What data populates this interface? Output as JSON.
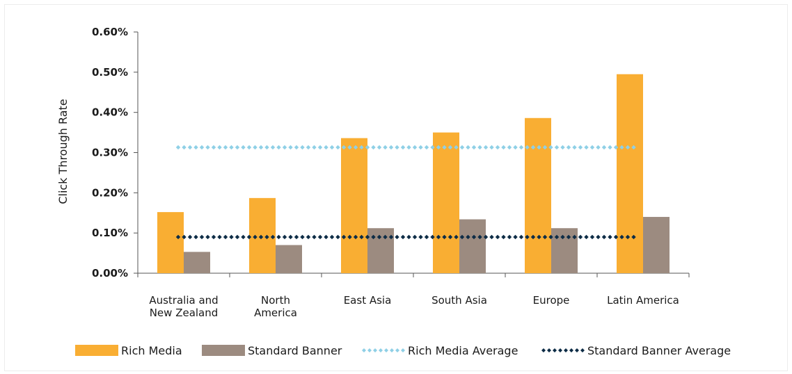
{
  "chart_data": {
    "type": "bar",
    "ylabel": "Click Through Rate",
    "xlabel": "",
    "ylim": [
      0,
      0.6
    ],
    "yticks": [
      "0.00%",
      "0.10%",
      "0.20%",
      "0.30%",
      "0.40%",
      "0.50%",
      "0.60%"
    ],
    "categories": [
      [
        "Australia and",
        "New Zealand"
      ],
      [
        "North",
        "America"
      ],
      [
        "East Asia"
      ],
      [
        "South Asia"
      ],
      [
        "Europe"
      ],
      [
        "Latin America"
      ]
    ],
    "series": [
      {
        "name": "Rich Media",
        "color": "#f9ae33",
        "values": [
          0.152,
          0.187,
          0.336,
          0.35,
          0.386,
          0.495
        ]
      },
      {
        "name": "Standard Banner",
        "color": "#9c8b80",
        "values": [
          0.053,
          0.07,
          0.112,
          0.134,
          0.112,
          0.14
        ]
      }
    ],
    "averages": [
      {
        "name": "Rich Media Average",
        "color": "#8fd0e6",
        "value": 0.313
      },
      {
        "name": "Standard Banner Average",
        "color": "#0d2c46",
        "value": 0.09
      }
    ],
    "grid": false,
    "legend_position": "bottom"
  }
}
